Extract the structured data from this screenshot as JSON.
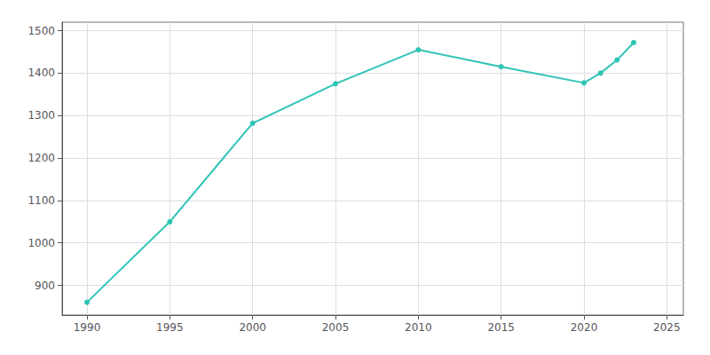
{
  "chart_data": {
    "type": "line",
    "x": [
      1990,
      1995,
      2000,
      2005,
      2010,
      2015,
      2020,
      2021,
      2022,
      2023
    ],
    "values": [
      860,
      1050,
      1282,
      1375,
      1455,
      1415,
      1377,
      1400,
      1431,
      1472
    ],
    "color": "#2ec4b6",
    "marker": "circle",
    "xlim": [
      1988.5,
      2026
    ],
    "xticks": [
      1990,
      1995,
      2000,
      2005,
      2010,
      2015,
      2020,
      2025
    ],
    "ylim": [
      830,
      1520
    ],
    "yticks": [
      900,
      1000,
      1100,
      1200,
      1300,
      1400,
      1500
    ],
    "grid": true
  }
}
